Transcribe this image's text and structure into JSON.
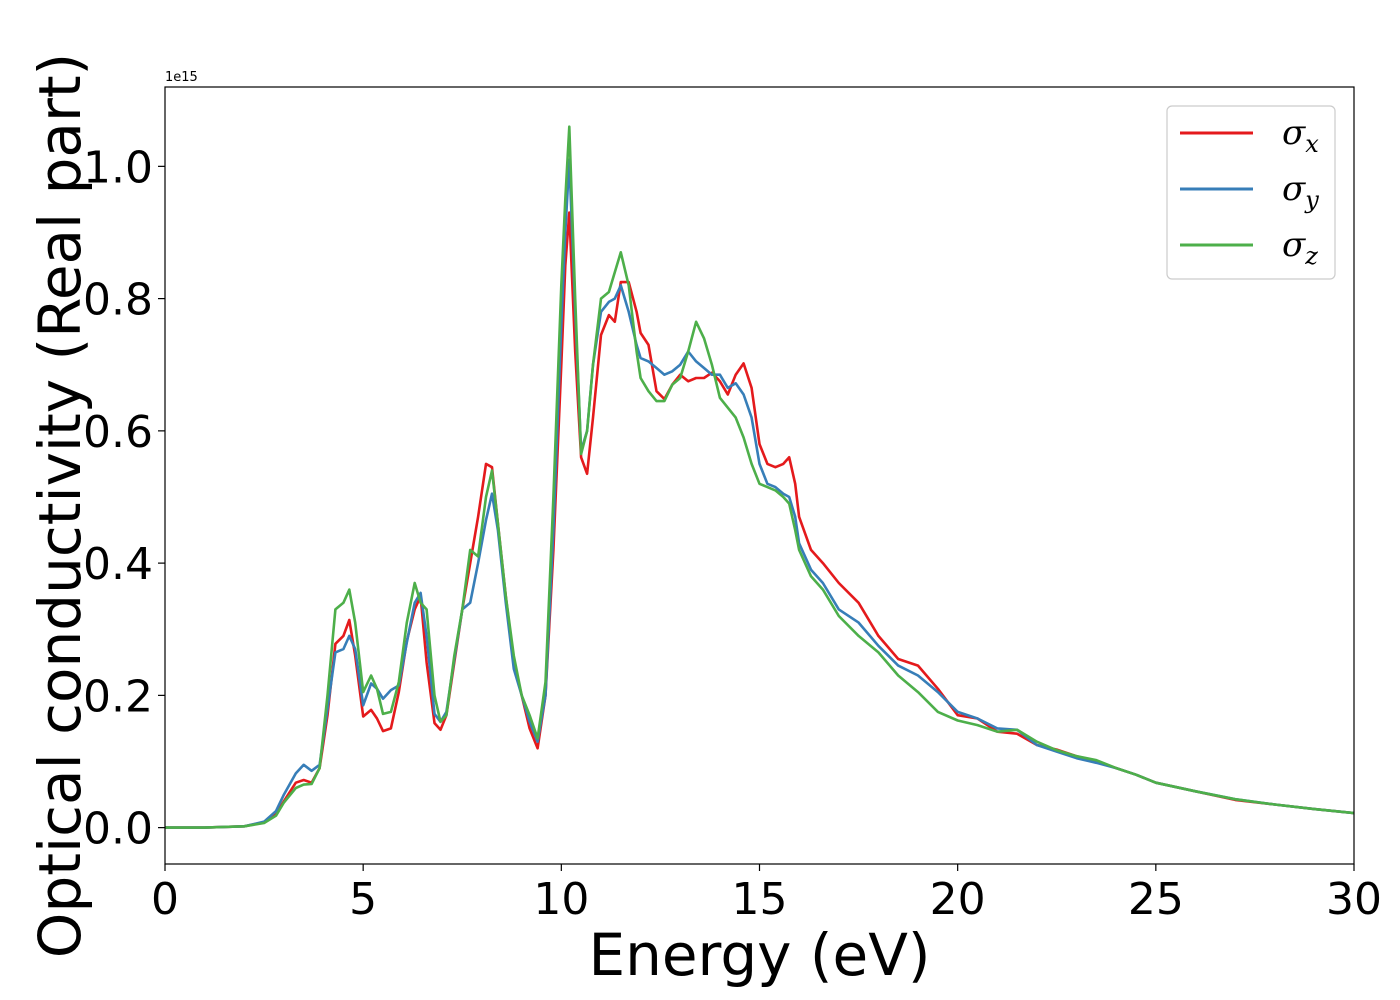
{
  "chart_data": {
    "type": "line",
    "title": "",
    "xlabel": "Energy (eV)",
    "ylabel": "Optical conductivity (Real part)",
    "y_offset_text": "1e15",
    "xlim": [
      0,
      30
    ],
    "ylim": [
      -0.055,
      1.12
    ],
    "xticks": [
      0,
      5,
      10,
      15,
      20,
      25,
      30
    ],
    "xtick_labels": [
      "0",
      "5",
      "10",
      "15",
      "20",
      "25",
      "30"
    ],
    "yticks": [
      0.0,
      0.2,
      0.4,
      0.6,
      0.8,
      1.0
    ],
    "ytick_labels": [
      "0.0",
      "0.2",
      "0.4",
      "0.6",
      "0.8",
      "1.0"
    ],
    "grid": false,
    "legend_position": "top-right",
    "series": [
      {
        "name": "σx",
        "symbol": "σ",
        "subscript": "x",
        "color": "#e41a1c",
        "x": [
          0,
          1,
          2,
          2.5,
          2.8,
          3.0,
          3.3,
          3.5,
          3.7,
          3.9,
          4.1,
          4.3,
          4.5,
          4.65,
          4.8,
          5.0,
          5.2,
          5.35,
          5.5,
          5.7,
          5.9,
          6.1,
          6.3,
          6.45,
          6.6,
          6.8,
          6.95,
          7.1,
          7.3,
          7.5,
          7.7,
          7.9,
          8.1,
          8.25,
          8.4,
          8.6,
          8.8,
          9.0,
          9.2,
          9.4,
          9.6,
          9.8,
          10.0,
          10.1,
          10.2,
          10.35,
          10.5,
          10.65,
          10.8,
          11.0,
          11.2,
          11.35,
          11.5,
          11.7,
          11.9,
          12.0,
          12.2,
          12.4,
          12.6,
          12.8,
          13.0,
          13.2,
          13.4,
          13.6,
          13.8,
          14.0,
          14.2,
          14.4,
          14.6,
          14.8,
          15.0,
          15.2,
          15.4,
          15.6,
          15.75,
          15.9,
          16.0,
          16.3,
          16.6,
          17.0,
          17.5,
          18.0,
          18.5,
          19.0,
          19.5,
          20.0,
          20.5,
          21.0,
          21.5,
          22.0,
          22.5,
          23.0,
          23.5,
          24.0,
          24.5,
          25.0,
          26.0,
          27.0,
          28.0,
          29.0,
          30.0
        ],
        "y": [
          0.0,
          0.0,
          0.002,
          0.008,
          0.02,
          0.04,
          0.068,
          0.072,
          0.068,
          0.09,
          0.17,
          0.278,
          0.29,
          0.314,
          0.26,
          0.168,
          0.178,
          0.165,
          0.146,
          0.15,
          0.205,
          0.282,
          0.33,
          0.35,
          0.25,
          0.158,
          0.148,
          0.17,
          0.25,
          0.33,
          0.4,
          0.47,
          0.55,
          0.545,
          0.46,
          0.35,
          0.25,
          0.2,
          0.15,
          0.12,
          0.2,
          0.42,
          0.7,
          0.85,
          0.93,
          0.72,
          0.56,
          0.535,
          0.62,
          0.745,
          0.775,
          0.765,
          0.825,
          0.825,
          0.78,
          0.748,
          0.73,
          0.66,
          0.648,
          0.67,
          0.685,
          0.675,
          0.68,
          0.68,
          0.688,
          0.675,
          0.655,
          0.685,
          0.702,
          0.665,
          0.58,
          0.55,
          0.545,
          0.55,
          0.56,
          0.52,
          0.47,
          0.42,
          0.4,
          0.37,
          0.34,
          0.29,
          0.255,
          0.245,
          0.21,
          0.17,
          0.165,
          0.145,
          0.142,
          0.125,
          0.118,
          0.108,
          0.1,
          0.09,
          0.08,
          0.068,
          0.055,
          0.042,
          0.035,
          0.028,
          0.022
        ]
      },
      {
        "name": "σy",
        "symbol": "σ",
        "subscript": "y",
        "color": "#377eb8",
        "x": [
          0,
          1,
          2,
          2.5,
          2.8,
          3.0,
          3.3,
          3.5,
          3.7,
          3.9,
          4.1,
          4.3,
          4.5,
          4.65,
          4.8,
          5.0,
          5.2,
          5.35,
          5.5,
          5.7,
          5.9,
          6.1,
          6.3,
          6.45,
          6.6,
          6.8,
          6.95,
          7.1,
          7.3,
          7.5,
          7.7,
          7.9,
          8.1,
          8.25,
          8.4,
          8.6,
          8.8,
          9.0,
          9.2,
          9.4,
          9.6,
          9.8,
          10.0,
          10.1,
          10.2,
          10.35,
          10.5,
          10.65,
          10.8,
          11.0,
          11.2,
          11.35,
          11.5,
          11.7,
          11.9,
          12.0,
          12.2,
          12.4,
          12.6,
          12.8,
          13.0,
          13.2,
          13.4,
          13.6,
          13.8,
          14.0,
          14.2,
          14.4,
          14.6,
          14.8,
          15.0,
          15.2,
          15.4,
          15.6,
          15.75,
          15.9,
          16.0,
          16.3,
          16.6,
          17.0,
          17.5,
          18.0,
          18.5,
          19.0,
          19.5,
          20.0,
          20.5,
          21.0,
          21.5,
          22.0,
          22.5,
          23.0,
          23.5,
          24.0,
          24.5,
          25.0,
          26.0,
          27.0,
          28.0,
          29.0,
          30.0
        ],
        "y": [
          0.0,
          0.0,
          0.002,
          0.009,
          0.025,
          0.05,
          0.082,
          0.095,
          0.086,
          0.095,
          0.18,
          0.265,
          0.27,
          0.29,
          0.27,
          0.185,
          0.218,
          0.21,
          0.195,
          0.208,
          0.215,
          0.28,
          0.34,
          0.355,
          0.29,
          0.172,
          0.16,
          0.175,
          0.255,
          0.33,
          0.34,
          0.4,
          0.465,
          0.505,
          0.45,
          0.34,
          0.24,
          0.2,
          0.16,
          0.13,
          0.2,
          0.45,
          0.76,
          0.9,
          1.01,
          0.78,
          0.57,
          0.6,
          0.7,
          0.78,
          0.795,
          0.8,
          0.82,
          0.78,
          0.73,
          0.71,
          0.705,
          0.695,
          0.685,
          0.69,
          0.7,
          0.72,
          0.705,
          0.695,
          0.685,
          0.685,
          0.665,
          0.672,
          0.655,
          0.62,
          0.55,
          0.52,
          0.515,
          0.505,
          0.5,
          0.47,
          0.43,
          0.39,
          0.37,
          0.33,
          0.31,
          0.275,
          0.245,
          0.23,
          0.205,
          0.175,
          0.165,
          0.15,
          0.148,
          0.125,
          0.115,
          0.105,
          0.098,
          0.09,
          0.08,
          0.068,
          0.055,
          0.043,
          0.035,
          0.028,
          0.022
        ]
      },
      {
        "name": "σz",
        "symbol": "σ",
        "subscript": "z",
        "color": "#4daf4a",
        "x": [
          0,
          1,
          2,
          2.5,
          2.8,
          3.0,
          3.3,
          3.5,
          3.7,
          3.9,
          4.1,
          4.3,
          4.5,
          4.65,
          4.8,
          5.0,
          5.2,
          5.35,
          5.5,
          5.7,
          5.9,
          6.1,
          6.3,
          6.45,
          6.6,
          6.8,
          6.95,
          7.1,
          7.3,
          7.5,
          7.7,
          7.9,
          8.1,
          8.25,
          8.4,
          8.6,
          8.8,
          9.0,
          9.2,
          9.4,
          9.6,
          9.8,
          10.0,
          10.1,
          10.2,
          10.35,
          10.5,
          10.65,
          10.8,
          11.0,
          11.2,
          11.35,
          11.5,
          11.7,
          11.9,
          12.0,
          12.2,
          12.4,
          12.6,
          12.8,
          13.0,
          13.2,
          13.4,
          13.6,
          13.8,
          14.0,
          14.2,
          14.4,
          14.6,
          14.8,
          15.0,
          15.2,
          15.4,
          15.6,
          15.75,
          15.9,
          16.0,
          16.3,
          16.6,
          17.0,
          17.5,
          18.0,
          18.5,
          19.0,
          19.5,
          20.0,
          20.5,
          21.0,
          21.5,
          22.0,
          22.5,
          23.0,
          23.5,
          24.0,
          24.5,
          25.0,
          26.0,
          27.0,
          28.0,
          29.0,
          30.0
        ],
        "y": [
          0.0,
          0.0,
          0.002,
          0.007,
          0.018,
          0.038,
          0.06,
          0.065,
          0.066,
          0.09,
          0.2,
          0.33,
          0.34,
          0.36,
          0.31,
          0.205,
          0.23,
          0.21,
          0.172,
          0.175,
          0.22,
          0.31,
          0.37,
          0.34,
          0.33,
          0.2,
          0.16,
          0.17,
          0.26,
          0.33,
          0.42,
          0.41,
          0.5,
          0.54,
          0.46,
          0.35,
          0.26,
          0.2,
          0.17,
          0.135,
          0.22,
          0.5,
          0.82,
          0.95,
          1.06,
          0.8,
          0.565,
          0.6,
          0.7,
          0.8,
          0.81,
          0.84,
          0.87,
          0.82,
          0.72,
          0.68,
          0.66,
          0.645,
          0.645,
          0.67,
          0.68,
          0.72,
          0.765,
          0.74,
          0.7,
          0.65,
          0.635,
          0.62,
          0.59,
          0.55,
          0.52,
          0.515,
          0.51,
          0.5,
          0.49,
          0.45,
          0.42,
          0.38,
          0.36,
          0.32,
          0.29,
          0.265,
          0.23,
          0.205,
          0.175,
          0.162,
          0.155,
          0.145,
          0.148,
          0.13,
          0.117,
          0.108,
          0.102,
          0.09,
          0.08,
          0.068,
          0.055,
          0.043,
          0.035,
          0.028,
          0.022
        ]
      }
    ]
  }
}
